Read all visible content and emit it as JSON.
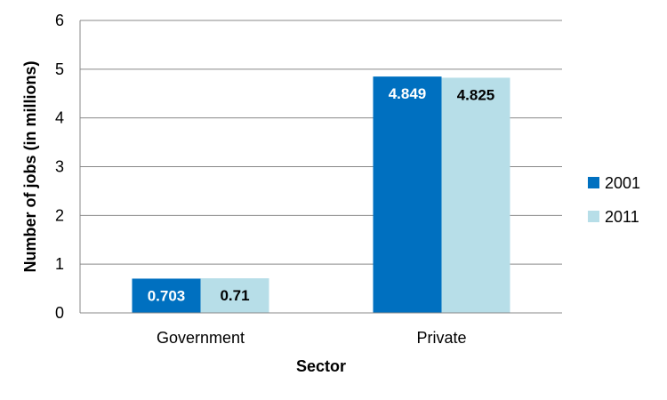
{
  "chart_data": {
    "type": "bar",
    "categories": [
      "Government",
      "Private"
    ],
    "series": [
      {
        "name": "2001",
        "values": [
          0.703,
          4.849
        ],
        "labels": [
          "0.703",
          "4.849"
        ],
        "color": "#0070C0",
        "label_color": "#ffffff"
      },
      {
        "name": "2011",
        "values": [
          0.71,
          4.825
        ],
        "labels": [
          "0.71",
          "4.825"
        ],
        "color": "#B7DEE8",
        "label_color": "#000000"
      }
    ],
    "xlabel": "Sector",
    "ylabel": "Number of jobs (in millions)",
    "ylim": [
      0,
      6
    ],
    "yticks": [
      "0",
      "1",
      "2",
      "3",
      "4",
      "5",
      "6"
    ],
    "grid": true,
    "legend_position": "right"
  }
}
